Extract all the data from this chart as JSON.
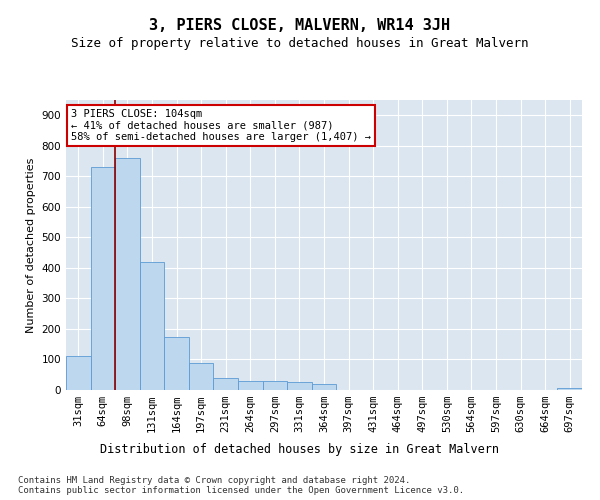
{
  "title": "3, PIERS CLOSE, MALVERN, WR14 3JH",
  "subtitle": "Size of property relative to detached houses in Great Malvern",
  "xlabel": "Distribution of detached houses by size in Great Malvern",
  "ylabel": "Number of detached properties",
  "categories": [
    "31sqm",
    "64sqm",
    "98sqm",
    "131sqm",
    "164sqm",
    "197sqm",
    "231sqm",
    "264sqm",
    "297sqm",
    "331sqm",
    "364sqm",
    "397sqm",
    "431sqm",
    "464sqm",
    "497sqm",
    "530sqm",
    "564sqm",
    "597sqm",
    "630sqm",
    "664sqm",
    "697sqm"
  ],
  "values": [
    110,
    730,
    760,
    420,
    175,
    90,
    40,
    30,
    30,
    25,
    20,
    0,
    0,
    0,
    0,
    0,
    0,
    0,
    0,
    0,
    5
  ],
  "bar_color": "#bdd7ee",
  "bar_edge_color": "#5b9bd5",
  "plot_bg_color": "#dce6f1",
  "ylim": [
    0,
    950
  ],
  "yticks": [
    0,
    100,
    200,
    300,
    400,
    500,
    600,
    700,
    800,
    900
  ],
  "vline_x_index": 2,
  "vline_color": "#8b0000",
  "annotation_text": "3 PIERS CLOSE: 104sqm\n← 41% of detached houses are smaller (987)\n58% of semi-detached houses are larger (1,407) →",
  "annotation_box_color": "white",
  "annotation_box_edge": "#cc0000",
  "footnote": "Contains HM Land Registry data © Crown copyright and database right 2024.\nContains public sector information licensed under the Open Government Licence v3.0.",
  "title_fontsize": 11,
  "subtitle_fontsize": 9,
  "xlabel_fontsize": 8.5,
  "ylabel_fontsize": 8,
  "tick_fontsize": 7.5,
  "annot_fontsize": 7.5,
  "footnote_fontsize": 6.5
}
